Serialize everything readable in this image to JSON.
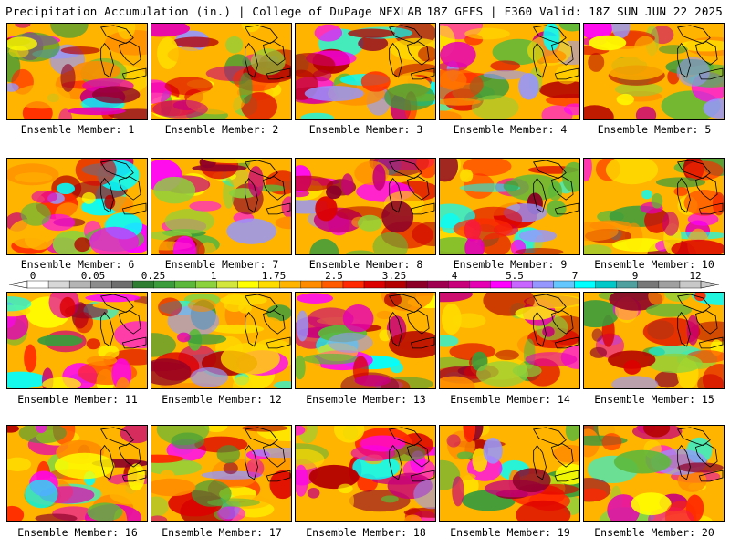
{
  "header": {
    "title_left": "Precipitation Accumulation (in.) | College of DuPage NEXLAB",
    "title_right": "18Z GEFS | F360 Valid: 18Z SUN JUN 22 2025"
  },
  "legend": {
    "tick_labels": [
      "0",
      "0.05",
      "0.25",
      "1",
      "1.75",
      "2.5",
      "3.25",
      "4",
      "5.5",
      "7",
      "9",
      "12"
    ],
    "colors": [
      "#ffffff",
      "#d8d8d8",
      "#b4b4b4",
      "#8c8c8c",
      "#6e6e6e",
      "#2e7d32",
      "#3b9c3b",
      "#5cb83a",
      "#8cd23c",
      "#d2e63c",
      "#ffff00",
      "#ffdc00",
      "#ffb400",
      "#ff8c00",
      "#ff5a00",
      "#ff2800",
      "#dc0000",
      "#b40000",
      "#8c0028",
      "#a00050",
      "#c8007a",
      "#e600b4",
      "#ff00ff",
      "#c864ff",
      "#9696ff",
      "#64c8ff",
      "#00ffff",
      "#00c8c8",
      "#50a0a0",
      "#787878",
      "#a0a0a0",
      "#c8c8c8"
    ]
  },
  "members": [
    {
      "label": "Ensemble Member: 1"
    },
    {
      "label": "Ensemble Member: 2"
    },
    {
      "label": "Ensemble Member: 3"
    },
    {
      "label": "Ensemble Member: 4"
    },
    {
      "label": "Ensemble Member: 5"
    },
    {
      "label": "Ensemble Member: 6"
    },
    {
      "label": "Ensemble Member: 7"
    },
    {
      "label": "Ensemble Member: 8"
    },
    {
      "label": "Ensemble Member: 9"
    },
    {
      "label": "Ensemble Member: 10"
    },
    {
      "label": "Ensemble Member: 11"
    },
    {
      "label": "Ensemble Member: 12"
    },
    {
      "label": "Ensemble Member: 13"
    },
    {
      "label": "Ensemble Member: 14"
    },
    {
      "label": "Ensemble Member: 15"
    },
    {
      "label": "Ensemble Member: 16"
    },
    {
      "label": "Ensemble Member: 17"
    },
    {
      "label": "Ensemble Member: 18"
    },
    {
      "label": "Ensemble Member: 19"
    },
    {
      "label": "Ensemble Member: 20"
    }
  ]
}
